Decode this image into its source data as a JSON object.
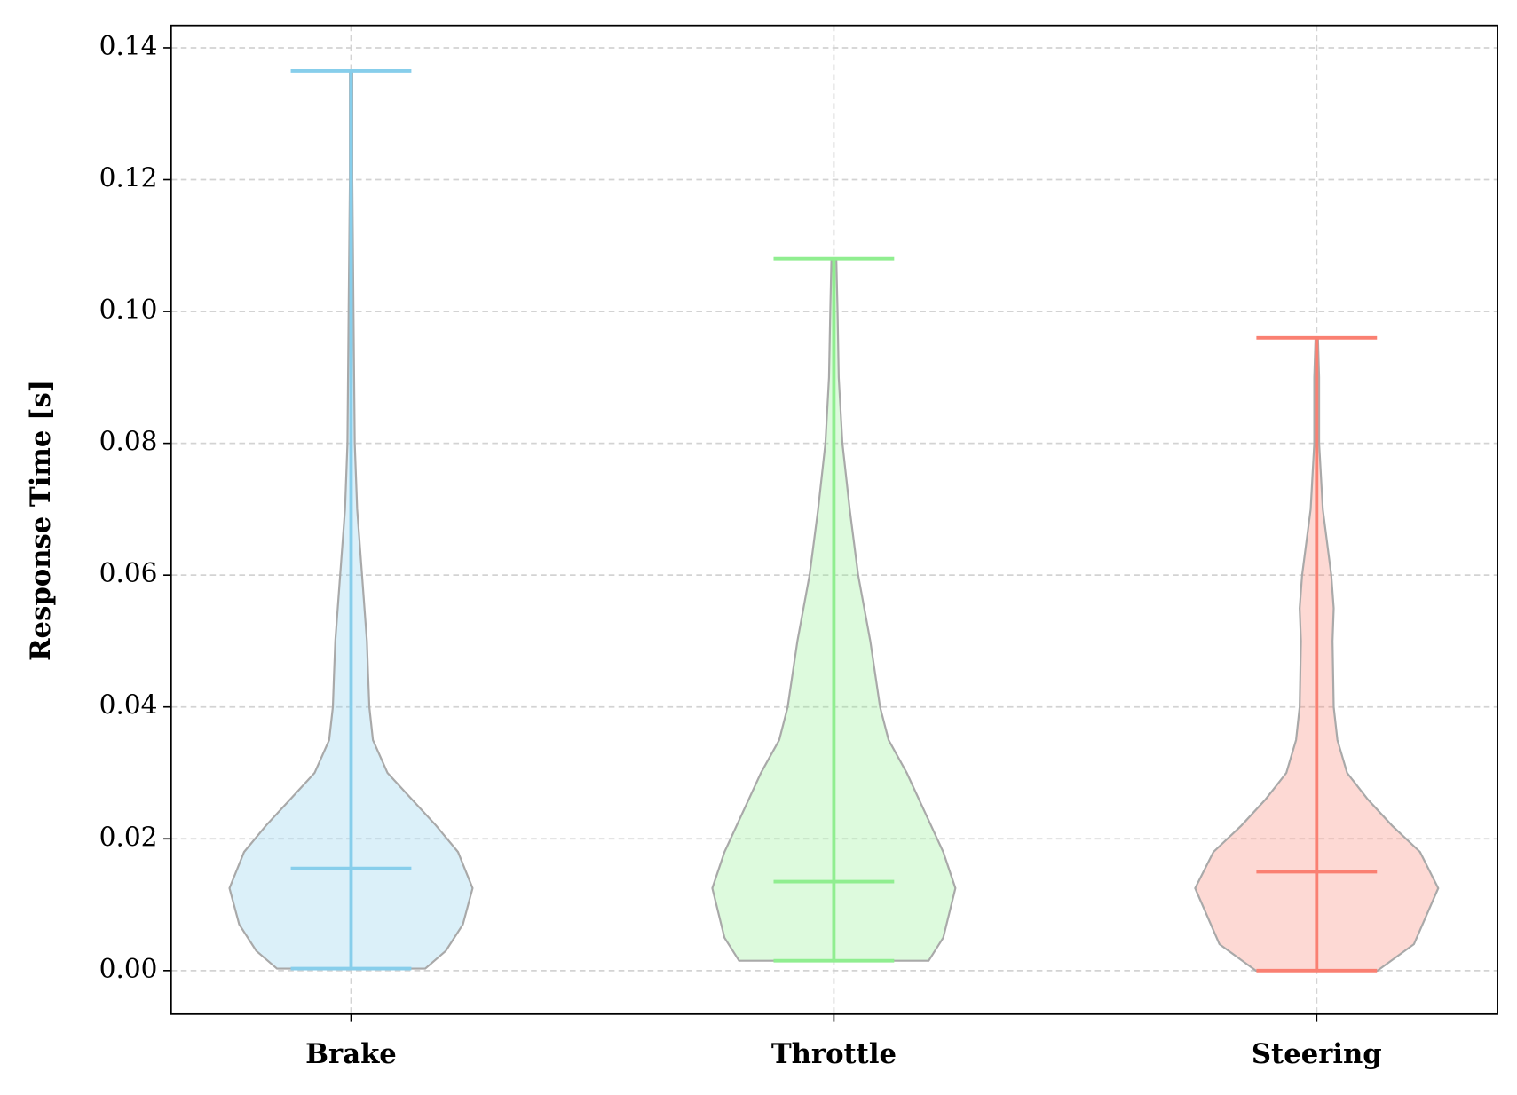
{
  "chart_data": {
    "type": "violin",
    "y_label": "Response Time [s]",
    "categories": [
      "Brake",
      "Throttle",
      "Steering"
    ],
    "ylim": [
      -0.0066,
      0.1434
    ],
    "yticks": [
      {
        "value": 0,
        "label": "0.00"
      },
      {
        "value": 0.02,
        "label": "0.02"
      },
      {
        "value": 0.04,
        "label": "0.04"
      },
      {
        "value": 0.06,
        "label": "0.06"
      },
      {
        "value": 0.08,
        "label": "0.08"
      },
      {
        "value": 0.1,
        "label": "0.10"
      },
      {
        "value": 0.12,
        "label": "0.12"
      },
      {
        "value": 0.14,
        "label": "0.14"
      }
    ],
    "grid": true,
    "series": [
      {
        "color": "#87ceeb",
        "min": 0.0003,
        "max": 0.1365,
        "median": 0.0155,
        "density": {
          "y": [
            0.0003,
            0.003,
            0.007,
            0.0125,
            0.018,
            0.022,
            0.026,
            0.03,
            0.035,
            0.04,
            0.045,
            0.05,
            0.06,
            0.07,
            0.08,
            0.1,
            0.12,
            0.1365
          ],
          "width": [
            0.61,
            0.78,
            0.92,
            1.0,
            0.88,
            0.7,
            0.5,
            0.3,
            0.18,
            0.15,
            0.14,
            0.13,
            0.09,
            0.05,
            0.03,
            0.02,
            0.01,
            0.01
          ]
        }
      },
      {
        "color": "#90ee90",
        "min": 0.0015,
        "max": 0.108,
        "median": 0.0135,
        "density": {
          "y": [
            0.0015,
            0.005,
            0.0125,
            0.018,
            0.022,
            0.03,
            0.035,
            0.04,
            0.05,
            0.06,
            0.07,
            0.08,
            0.09,
            0.1,
            0.108
          ],
          "width": [
            0.78,
            0.9,
            1.0,
            0.9,
            0.8,
            0.6,
            0.45,
            0.38,
            0.3,
            0.2,
            0.13,
            0.07,
            0.04,
            0.03,
            0.02
          ]
        }
      },
      {
        "color": "#fa8072",
        "min": 0,
        "max": 0.096,
        "median": 0.015,
        "density": {
          "y": [
            0,
            0.004,
            0.0125,
            0.018,
            0.022,
            0.026,
            0.03,
            0.035,
            0.04,
            0.05,
            0.055,
            0.06,
            0.07,
            0.08,
            0.09,
            0.096
          ],
          "width": [
            0.5,
            0.8,
            1.0,
            0.85,
            0.62,
            0.42,
            0.25,
            0.17,
            0.14,
            0.13,
            0.14,
            0.12,
            0.05,
            0.02,
            0.02,
            0.01
          ]
        }
      }
    ]
  }
}
